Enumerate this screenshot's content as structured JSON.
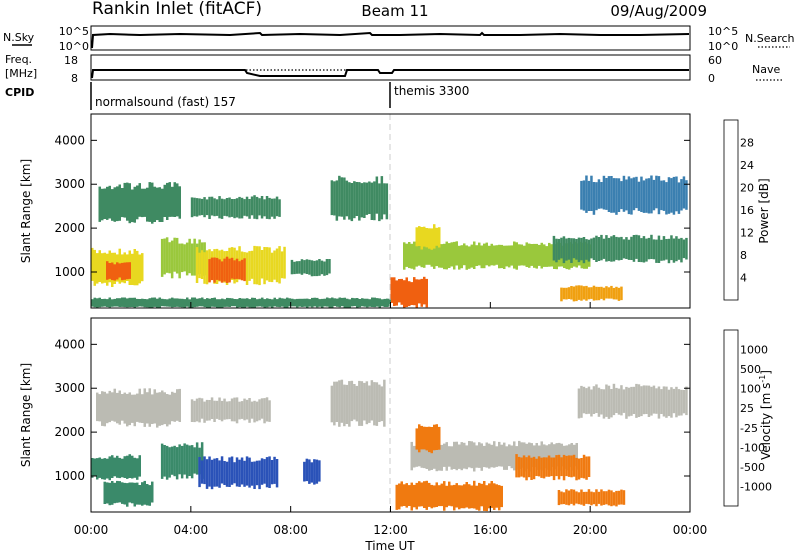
{
  "header": {
    "station": "Rankin Inlet (fitACF)",
    "beam": "Beam 11",
    "date": "09/Aug/2009"
  },
  "colors": {
    "power_scale": [
      "#0018e0",
      "#1f3fbf",
      "#3a7fb0",
      "#3f8a62",
      "#5aa04a",
      "#9ac83c",
      "#e8d820",
      "#f0a010",
      "#f06010",
      "#e81818"
    ],
    "velocity_scale": [
      "#1030c0",
      "#2a52b8",
      "#3a8a6a",
      "#6abf40",
      "#bbbbb3",
      "#c8c8c0",
      "#f0a030",
      "#f07a10",
      "#e85010",
      "#e81010"
    ]
  },
  "noise_panel": {
    "left_label": "N.Sky",
    "left_ticks": [
      "10^5",
      "10^0"
    ],
    "right_label": "N.Search",
    "right_ticks": [
      "10^5",
      "10^0"
    ]
  },
  "freq_panel": {
    "left_label_1": "Freq.",
    "left_label_2": "[MHz]",
    "left_ticks": [
      "18",
      "8"
    ],
    "right_label": "Nave",
    "right_ticks": [
      "60",
      "0"
    ]
  },
  "cpid": {
    "label": "CPID",
    "segments": [
      {
        "label": "normalsound (fast) 157",
        "start_hour": 0
      },
      {
        "label": "themis 3300",
        "start_hour": 12
      }
    ]
  },
  "chart_data": [
    {
      "type": "heatmap",
      "panel": "power",
      "ylabel": "Slant Range [km]",
      "y_ticks": [
        1000,
        2000,
        3000,
        4000
      ],
      "ylim": [
        180,
        4600
      ],
      "xlim": [
        0,
        24
      ],
      "colorbar_label": "Power [dB]",
      "colorbar_ticks": [
        "28",
        "24",
        "20",
        "16",
        "12",
        "8",
        "4"
      ],
      "patches": [
        {
          "t0": 0.0,
          "t1": 2.1,
          "r0": 650,
          "r1": 1550,
          "v": 20
        },
        {
          "t0": 0.6,
          "t1": 1.6,
          "r0": 800,
          "r1": 1250,
          "v": 28
        },
        {
          "t0": 0.3,
          "t1": 3.6,
          "r0": 2100,
          "r1": 3050,
          "v": 12
        },
        {
          "t0": 2.8,
          "t1": 4.6,
          "r0": 850,
          "r1": 1800,
          "v": 16
        },
        {
          "t0": 4.2,
          "t1": 7.8,
          "r0": 700,
          "r1": 1600,
          "v": 20
        },
        {
          "t0": 4.7,
          "t1": 6.2,
          "r0": 750,
          "r1": 1350,
          "v": 28
        },
        {
          "t0": 4.0,
          "t1": 7.6,
          "r0": 2200,
          "r1": 2750,
          "v": 12
        },
        {
          "t0": 9.6,
          "t1": 11.9,
          "r0": 2150,
          "r1": 3200,
          "v": 12
        },
        {
          "t0": 12.5,
          "t1": 20.0,
          "r0": 1050,
          "r1": 1700,
          "v": 16
        },
        {
          "t0": 13.0,
          "t1": 14.0,
          "r0": 1500,
          "r1": 2100,
          "v": 22
        },
        {
          "t0": 18.5,
          "t1": 23.9,
          "r0": 1200,
          "r1": 1850,
          "v": 12
        },
        {
          "t0": 12.0,
          "t1": 13.5,
          "r0": 180,
          "r1": 900,
          "v": 26
        },
        {
          "t0": 18.8,
          "t1": 21.3,
          "r0": 330,
          "r1": 700,
          "v": 24
        },
        {
          "t0": 19.6,
          "t1": 23.9,
          "r0": 2300,
          "r1": 3200,
          "v": 8
        },
        {
          "t0": 0.0,
          "t1": 12.0,
          "r0": 180,
          "r1": 420,
          "v": 12
        },
        {
          "t0": 8.0,
          "t1": 9.6,
          "r0": 900,
          "r1": 1300,
          "v": 12
        }
      ]
    },
    {
      "type": "heatmap",
      "panel": "velocity",
      "ylabel": "Slant Range [km]",
      "y_ticks": [
        1000,
        2000,
        3000,
        4000
      ],
      "ylim": [
        180,
        4600
      ],
      "xlim": [
        0,
        24
      ],
      "colorbar_label": "Velocity [m s^-1]",
      "colorbar_ticks": [
        "1000",
        "500",
        "100",
        "25",
        "-25",
        "-100",
        "-500",
        "-1000"
      ],
      "patches": [
        {
          "t0": 0.0,
          "t1": 2.0,
          "r0": 900,
          "r1": 1500,
          "v": 150
        },
        {
          "t0": 0.5,
          "t1": 2.5,
          "r0": 300,
          "r1": 900,
          "v": 200
        },
        {
          "t0": 0.2,
          "t1": 3.6,
          "r0": 2100,
          "r1": 3000,
          "v": 0
        },
        {
          "t0": 2.8,
          "t1": 4.5,
          "r0": 900,
          "r1": 1800,
          "v": 300
        },
        {
          "t0": 4.3,
          "t1": 7.5,
          "r0": 700,
          "r1": 1450,
          "v": 900
        },
        {
          "t0": 4.0,
          "t1": 7.2,
          "r0": 2200,
          "r1": 2800,
          "v": 0
        },
        {
          "t0": 8.5,
          "t1": 9.2,
          "r0": 800,
          "r1": 1400,
          "v": 700
        },
        {
          "t0": 9.6,
          "t1": 11.8,
          "r0": 2100,
          "r1": 3200,
          "v": 0
        },
        {
          "t0": 12.8,
          "t1": 19.5,
          "r0": 1100,
          "r1": 1800,
          "v": 0
        },
        {
          "t0": 13.0,
          "t1": 14.0,
          "r0": 1500,
          "r1": 2200,
          "v": -400
        },
        {
          "t0": 12.2,
          "t1": 16.5,
          "r0": 200,
          "r1": 900,
          "v": -350
        },
        {
          "t0": 18.7,
          "t1": 21.4,
          "r0": 300,
          "r1": 700,
          "v": -500
        },
        {
          "t0": 19.5,
          "t1": 23.9,
          "r0": 2300,
          "r1": 3100,
          "v": 0
        },
        {
          "t0": 17.0,
          "t1": 20.0,
          "r0": 900,
          "r1": 1500,
          "v": -150
        }
      ]
    }
  ],
  "x_axis": {
    "ticks": [
      "00:00",
      "04:00",
      "08:00",
      "12:00",
      "16:00",
      "20:00",
      "00:00"
    ],
    "label": "Time UT"
  }
}
